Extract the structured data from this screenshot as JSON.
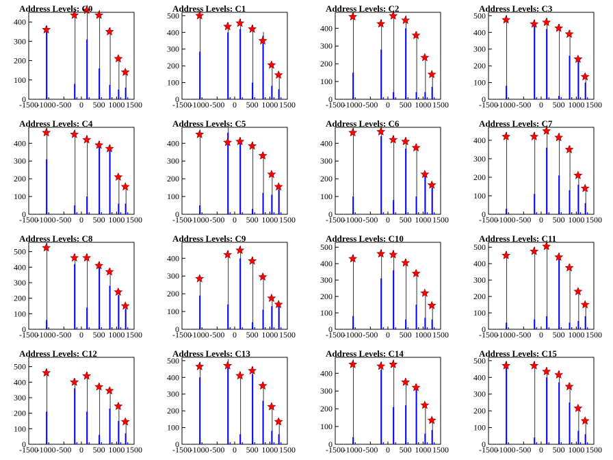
{
  "chart_data": [
    {
      "type": "bar",
      "title": "Address Levels: C0",
      "xlim": [
        -1500,
        1500
      ],
      "ylim": [
        0,
        450
      ],
      "xticks": [
        "-1500",
        "-1000",
        "-500",
        "0",
        "500",
        "1000",
        "1500"
      ],
      "yticks": [
        "0",
        "100",
        "200",
        "300",
        "400"
      ],
      "peaks_x": [
        -1000,
        -200,
        150,
        500,
        800,
        1050,
        1250
      ],
      "series": [
        {
          "values": [
            360,
            80,
            310,
            160,
            75,
            50,
            60
          ]
        },
        {
          "values": [
            360,
            435,
            460,
            435,
            350,
            210,
            140
          ]
        }
      ]
    },
    {
      "type": "bar",
      "title": "Address Levels: C1",
      "xlim": [
        -1500,
        1500
      ],
      "ylim": [
        0,
        520
      ],
      "xticks": [
        "-1500",
        "-1000",
        "-500",
        "0",
        "500",
        "1000",
        "1500"
      ],
      "yticks": [
        "0",
        "100",
        "200",
        "300",
        "400",
        "500"
      ],
      "peaks_x": [
        -1000,
        -200,
        150,
        500,
        800,
        1050,
        1250
      ],
      "series": [
        {
          "values": [
            285,
            400,
            420,
            100,
            380,
            80,
            60
          ]
        },
        {
          "values": [
            500,
            435,
            455,
            420,
            350,
            205,
            145
          ]
        }
      ]
    },
    {
      "type": "bar",
      "title": "Address Levels: C2",
      "xlim": [
        -1500,
        1500
      ],
      "ylim": [
        0,
        490
      ],
      "xticks": [
        "-1500",
        "-1000",
        "-500",
        "0",
        "500",
        "1000",
        "1500"
      ],
      "yticks": [
        "0",
        "100",
        "200",
        "300",
        "400"
      ],
      "peaks_x": [
        -1000,
        -200,
        150,
        500,
        800,
        1050,
        1250
      ],
      "series": [
        {
          "values": [
            150,
            280,
            40,
            400,
            40,
            40,
            70
          ]
        },
        {
          "values": [
            465,
            425,
            470,
            445,
            360,
            235,
            140
          ]
        }
      ]
    },
    {
      "type": "bar",
      "title": "Address Levels: C3",
      "xlim": [
        -1500,
        1500
      ],
      "ylim": [
        0,
        520
      ],
      "xticks": [
        "-1500",
        "-1000",
        "-500",
        "0",
        "500",
        "1000",
        "1500"
      ],
      "yticks": [
        "0",
        "100",
        "200",
        "300",
        "400",
        "500"
      ],
      "peaks_x": [
        -1000,
        -200,
        150,
        500,
        800,
        1050,
        1250
      ],
      "series": [
        {
          "values": [
            80,
            440,
            420,
            20,
            260,
            230,
            100
          ]
        },
        {
          "values": [
            475,
            450,
            460,
            425,
            390,
            240,
            135
          ]
        }
      ]
    },
    {
      "type": "bar",
      "title": "Address Levels: C4",
      "xlim": [
        -1500,
        1500
      ],
      "ylim": [
        0,
        490
      ],
      "xticks": [
        "-1500",
        "-1000",
        "-500",
        "0",
        "500",
        "1000",
        "1500"
      ],
      "yticks": [
        "0",
        "100",
        "200",
        "300",
        "400"
      ],
      "peaks_x": [
        -1000,
        -200,
        150,
        500,
        800,
        1050,
        1250
      ],
      "series": [
        {
          "values": [
            310,
            50,
            100,
            380,
            360,
            60,
            60
          ]
        },
        {
          "values": [
            460,
            450,
            420,
            390,
            370,
            210,
            155
          ]
        }
      ]
    },
    {
      "type": "bar",
      "title": "Address Levels: C5",
      "xlim": [
        -1500,
        1500
      ],
      "ylim": [
        0,
        490
      ],
      "xticks": [
        "-1500",
        "-1000",
        "-500",
        "0",
        "500",
        "1000",
        "1500"
      ],
      "yticks": [
        "0",
        "100",
        "200",
        "300",
        "400"
      ],
      "peaks_x": [
        -1000,
        -200,
        150,
        500,
        800,
        1050,
        1250
      ],
      "series": [
        {
          "values": [
            50,
            460,
            400,
            30,
            120,
            110,
            140
          ]
        },
        {
          "values": [
            450,
            405,
            410,
            385,
            330,
            225,
            155
          ]
        }
      ]
    },
    {
      "type": "bar",
      "title": "Address Levels: C6",
      "xlim": [
        -1500,
        1500
      ],
      "ylim": [
        0,
        490
      ],
      "xticks": [
        "-1500",
        "-1000",
        "-500",
        "0",
        "500",
        "1000",
        "1500"
      ],
      "yticks": [
        "0",
        "100",
        "200",
        "300",
        "400"
      ],
      "peaks_x": [
        -1000,
        -200,
        150,
        500,
        800,
        1050,
        1250
      ],
      "series": [
        {
          "values": [
            100,
            440,
            80,
            370,
            100,
            220,
            150
          ]
        },
        {
          "values": [
            460,
            465,
            420,
            410,
            375,
            225,
            165
          ]
        }
      ]
    },
    {
      "type": "bar",
      "title": "Address Levels: C7",
      "xlim": [
        -1500,
        1500
      ],
      "ylim": [
        0,
        470
      ],
      "xticks": [
        "-1500",
        "-1000",
        "-500",
        "0",
        "500",
        "1000",
        "1500"
      ],
      "yticks": [
        "0",
        "100",
        "200",
        "300",
        "400"
      ],
      "peaks_x": [
        -1000,
        -200,
        150,
        500,
        800,
        1050,
        1250
      ],
      "series": [
        {
          "values": [
            30,
            110,
            360,
            210,
            130,
            160,
            60
          ]
        },
        {
          "values": [
            420,
            420,
            450,
            415,
            350,
            210,
            140
          ]
        }
      ]
    },
    {
      "type": "bar",
      "title": "Address Levels: C8",
      "xlim": [
        -1500,
        1500
      ],
      "ylim": [
        0,
        560
      ],
      "xticks": [
        "-1500",
        "-1000",
        "-500",
        "0",
        "500",
        "1000",
        "1500"
      ],
      "yticks": [
        "0",
        "100",
        "200",
        "300",
        "400",
        "500"
      ],
      "peaks_x": [
        -1000,
        -200,
        150,
        500,
        800,
        1050,
        1250
      ],
      "series": [
        {
          "values": [
            60,
            420,
            140,
            400,
            280,
            220,
            130
          ]
        },
        {
          "values": [
            525,
            460,
            460,
            410,
            370,
            240,
            150
          ]
        }
      ]
    },
    {
      "type": "bar",
      "title": "Address Levels: C9",
      "xlim": [
        -1500,
        1500
      ],
      "ylim": [
        0,
        490
      ],
      "xticks": [
        "-1500",
        "-1000",
        "-500",
        "0",
        "500",
        "1000",
        "1500"
      ],
      "yticks": [
        "0",
        "100",
        "200",
        "300",
        "400"
      ],
      "peaks_x": [
        -1000,
        -200,
        150,
        500,
        800,
        1050,
        1250
      ],
      "series": [
        {
          "values": [
            190,
            140,
            400,
            40,
            110,
            130,
            130
          ]
        },
        {
          "values": [
            285,
            420,
            445,
            385,
            295,
            175,
            140
          ]
        }
      ]
    },
    {
      "type": "bar",
      "title": "Address Levels: C10",
      "xlim": [
        -1500,
        1500
      ],
      "ylim": [
        0,
        530
      ],
      "xticks": [
        "-1500",
        "-1000",
        "-500",
        "0",
        "500",
        "1000",
        "1500"
      ],
      "yticks": [
        "0",
        "100",
        "200",
        "300",
        "400",
        "500"
      ],
      "peaks_x": [
        -1000,
        -200,
        150,
        500,
        800,
        1050,
        1250
      ],
      "series": [
        {
          "values": [
            80,
            310,
            360,
            60,
            150,
            70,
            60
          ]
        },
        {
          "values": [
            430,
            460,
            455,
            405,
            340,
            220,
            145
          ]
        }
      ]
    },
    {
      "type": "bar",
      "title": "Address Levels: C11",
      "xlim": [
        -1500,
        1500
      ],
      "ylim": [
        0,
        530
      ],
      "xticks": [
        "-1500",
        "-1000",
        "-500",
        "0",
        "500",
        "1000",
        "1500"
      ],
      "yticks": [
        "0",
        "100",
        "200",
        "300",
        "400",
        "500"
      ],
      "peaks_x": [
        -1000,
        -200,
        150,
        500,
        800,
        1050,
        1250
      ],
      "series": [
        {
          "values": [
            40,
            60,
            80,
            430,
            40,
            50,
            80
          ]
        },
        {
          "values": [
            450,
            475,
            505,
            440,
            375,
            230,
            150
          ]
        }
      ]
    },
    {
      "type": "bar",
      "title": "Address Levels: C12",
      "xlim": [
        -1500,
        1500
      ],
      "ylim": [
        0,
        560
      ],
      "xticks": [
        "-1500",
        "-1000",
        "-500",
        "0",
        "500",
        "1000",
        "1500"
      ],
      "yticks": [
        "0",
        "100",
        "200",
        "300",
        "400",
        "500"
      ],
      "peaks_x": [
        -1000,
        -200,
        150,
        500,
        800,
        1050,
        1250
      ],
      "series": [
        {
          "values": [
            210,
            360,
            210,
            60,
            230,
            150,
            70
          ]
        },
        {
          "values": [
            460,
            400,
            440,
            370,
            345,
            245,
            145
          ]
        }
      ]
    },
    {
      "type": "bar",
      "title": "Address Levels: C13",
      "xlim": [
        -1500,
        1500
      ],
      "ylim": [
        0,
        520
      ],
      "xticks": [
        "-1500",
        "-1000",
        "-500",
        "0",
        "500",
        "1000",
        "1500"
      ],
      "yticks": [
        "0",
        "100",
        "200",
        "300",
        "400",
        "500"
      ],
      "peaks_x": [
        -1000,
        -200,
        150,
        500,
        800,
        1050,
        1250
      ],
      "series": [
        {
          "values": [
            400,
            480,
            60,
            420,
            260,
            80,
            60
          ]
        },
        {
          "values": [
            465,
            470,
            410,
            440,
            350,
            225,
            135
          ]
        }
      ]
    },
    {
      "type": "bar",
      "title": "Address Levels: C14",
      "xlim": [
        -1500,
        1500
      ],
      "ylim": [
        0,
        490
      ],
      "xticks": [
        "-1500",
        "-1000",
        "-500",
        "0",
        "500",
        "1000",
        "1500"
      ],
      "yticks": [
        "0",
        "100",
        "200",
        "300",
        "400"
      ],
      "peaks_x": [
        -1000,
        -200,
        150,
        500,
        800,
        1050,
        1250
      ],
      "series": [
        {
          "values": [
            40,
            420,
            210,
            220,
            310,
            60,
            80
          ]
        },
        {
          "values": [
            450,
            440,
            450,
            350,
            320,
            220,
            135
          ]
        }
      ]
    },
    {
      "type": "bar",
      "title": "Address Levels: C15",
      "xlim": [
        -1500,
        1500
      ],
      "ylim": [
        0,
        520
      ],
      "xticks": [
        "-1500",
        "-1000",
        "-500",
        "0",
        "500",
        "1000",
        "1500"
      ],
      "yticks": [
        "0",
        "100",
        "200",
        "300",
        "400",
        "500"
      ],
      "peaks_x": [
        -1000,
        -200,
        150,
        500,
        800,
        1050,
        1250
      ],
      "series": [
        {
          "values": [
            460,
            40,
            400,
            370,
            250,
            80,
            60
          ]
        },
        {
          "values": [
            470,
            470,
            435,
            415,
            345,
            215,
            140
          ]
        }
      ]
    }
  ],
  "colors": {
    "bars": "#0000ff",
    "markers": "#ff0000",
    "axis": "#000000"
  }
}
